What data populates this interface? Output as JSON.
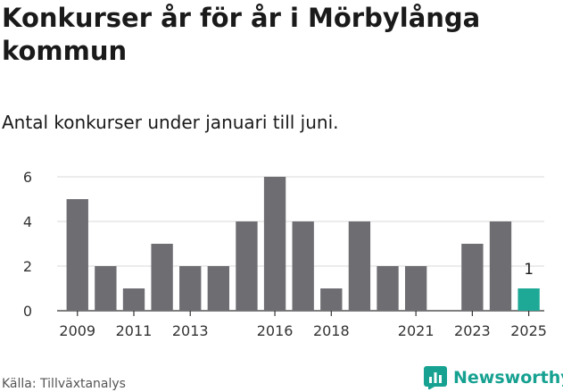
{
  "title": "Konkurser år för år i Mörbylånga kommun",
  "subtitle": "Antal konkurser under januari till juni.",
  "source": "Källa: Tillväxtanalys",
  "brand": {
    "name": "Newsworthy",
    "icon": "newsworthy-logo-icon",
    "color": "#16a191"
  },
  "colors": {
    "bar": "#6e6d72",
    "highlight": "#1ea896",
    "grid": "#d9d9d9",
    "axis": "#333333"
  },
  "chart_data": {
    "type": "bar",
    "categories": [
      "2009",
      "2010",
      "2011",
      "2012",
      "2013",
      "2014",
      "2015",
      "2016",
      "2017",
      "2018",
      "2019",
      "2020",
      "2021",
      "2022",
      "2023",
      "2024",
      "2025"
    ],
    "values": [
      5,
      2,
      1,
      3,
      2,
      2,
      4,
      6,
      4,
      1,
      4,
      2,
      2,
      0,
      3,
      4,
      1
    ],
    "tick_labels": [
      "2009",
      "2011",
      "2013",
      "2016",
      "2018",
      "2021",
      "2023",
      "2025"
    ],
    "yticks": [
      0,
      2,
      4,
      6
    ],
    "ylim": [
      0,
      6
    ],
    "grid": true,
    "highlight": {
      "category": "2025",
      "label": "1"
    }
  }
}
